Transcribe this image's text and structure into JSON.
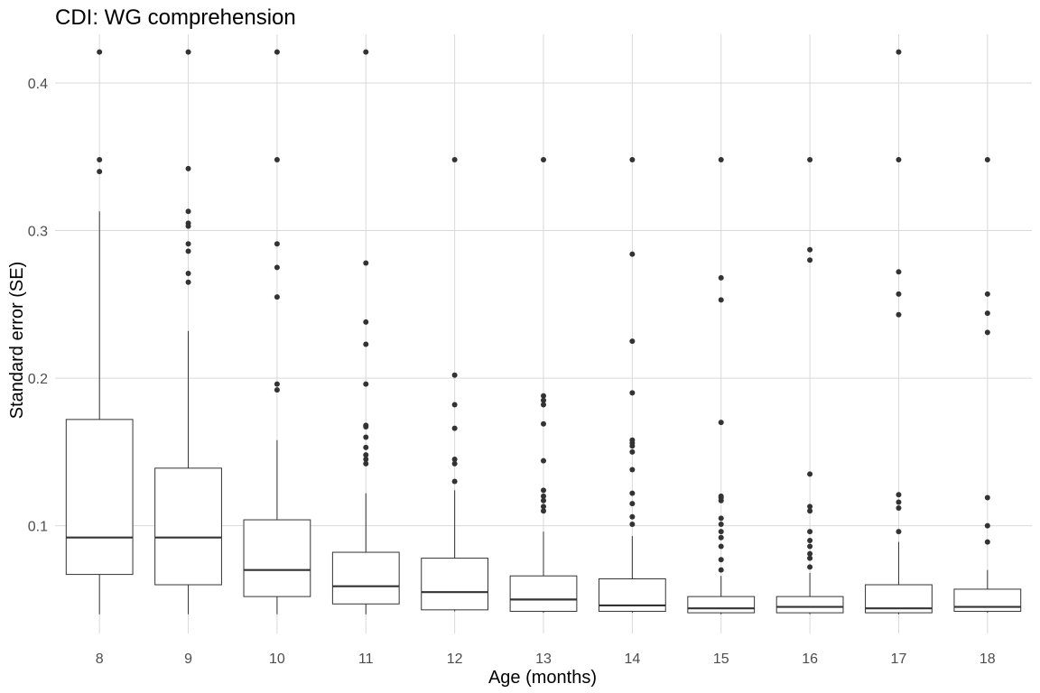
{
  "chart_data": {
    "type": "box",
    "title": "CDI: WG comprehension",
    "xlabel": "Age (months)",
    "ylabel": "Standard error (SE)",
    "ylim": [
      0.027,
      0.433
    ],
    "yticks": [
      0.1,
      0.2,
      0.3,
      0.4
    ],
    "ytick_labels": [
      "0.1",
      "0.2",
      "0.3",
      "0.4"
    ],
    "grid": true,
    "categories": [
      "8",
      "9",
      "10",
      "11",
      "12",
      "13",
      "14",
      "15",
      "16",
      "17",
      "18"
    ],
    "boxes": [
      {
        "category": "8",
        "whisker_low": 0.04,
        "q1": 0.067,
        "median": 0.092,
        "q3": 0.172,
        "whisker_high": 0.313,
        "outliers": [
          0.34,
          0.348,
          0.421
        ]
      },
      {
        "category": "9",
        "whisker_low": 0.04,
        "q1": 0.06,
        "median": 0.092,
        "q3": 0.139,
        "whisker_high": 0.232,
        "outliers": [
          0.265,
          0.271,
          0.286,
          0.291,
          0.303,
          0.305,
          0.313,
          0.342,
          0.421
        ]
      },
      {
        "category": "10",
        "whisker_low": 0.04,
        "q1": 0.052,
        "median": 0.07,
        "q3": 0.104,
        "whisker_high": 0.158,
        "outliers": [
          0.192,
          0.196,
          0.255,
          0.275,
          0.291,
          0.348,
          0.421
        ]
      },
      {
        "category": "11",
        "whisker_low": 0.04,
        "q1": 0.047,
        "median": 0.059,
        "q3": 0.082,
        "whisker_high": 0.122,
        "outliers": [
          0.142,
          0.145,
          0.148,
          0.153,
          0.16,
          0.167,
          0.168,
          0.196,
          0.223,
          0.238,
          0.278,
          0.421
        ]
      },
      {
        "category": "12",
        "whisker_low": 0.042,
        "q1": 0.043,
        "median": 0.055,
        "q3": 0.078,
        "whisker_high": 0.124,
        "outliers": [
          0.13,
          0.142,
          0.145,
          0.166,
          0.182,
          0.202,
          0.348
        ]
      },
      {
        "category": "13",
        "whisker_low": 0.041,
        "q1": 0.042,
        "median": 0.05,
        "q3": 0.066,
        "whisker_high": 0.096,
        "outliers": [
          0.11,
          0.113,
          0.117,
          0.12,
          0.124,
          0.144,
          0.169,
          0.182,
          0.185,
          0.188,
          0.348
        ]
      },
      {
        "category": "14",
        "whisker_low": 0.041,
        "q1": 0.042,
        "median": 0.046,
        "q3": 0.064,
        "whisker_high": 0.093,
        "outliers": [
          0.101,
          0.106,
          0.115,
          0.122,
          0.138,
          0.15,
          0.154,
          0.156,
          0.158,
          0.19,
          0.225,
          0.284,
          0.348
        ]
      },
      {
        "category": "15",
        "whisker_low": 0.04,
        "q1": 0.041,
        "median": 0.044,
        "q3": 0.052,
        "whisker_high": 0.066,
        "outliers": [
          0.07,
          0.077,
          0.086,
          0.092,
          0.096,
          0.101,
          0.105,
          0.117,
          0.119,
          0.12,
          0.17,
          0.253,
          0.268,
          0.348
        ]
      },
      {
        "category": "16",
        "whisker_low": 0.04,
        "q1": 0.041,
        "median": 0.045,
        "q3": 0.052,
        "whisker_high": 0.068,
        "outliers": [
          0.072,
          0.078,
          0.081,
          0.086,
          0.09,
          0.096,
          0.11,
          0.113,
          0.135,
          0.28,
          0.287,
          0.348
        ]
      },
      {
        "category": "17",
        "whisker_low": 0.04,
        "q1": 0.041,
        "median": 0.044,
        "q3": 0.06,
        "whisker_high": 0.089,
        "outliers": [
          0.096,
          0.112,
          0.116,
          0.121,
          0.243,
          0.257,
          0.272,
          0.348,
          0.421
        ]
      },
      {
        "category": "18",
        "whisker_low": 0.041,
        "q1": 0.042,
        "median": 0.045,
        "q3": 0.057,
        "whisker_high": 0.07,
        "outliers": [
          0.089,
          0.1,
          0.119,
          0.231,
          0.244,
          0.257,
          0.348
        ]
      }
    ]
  }
}
